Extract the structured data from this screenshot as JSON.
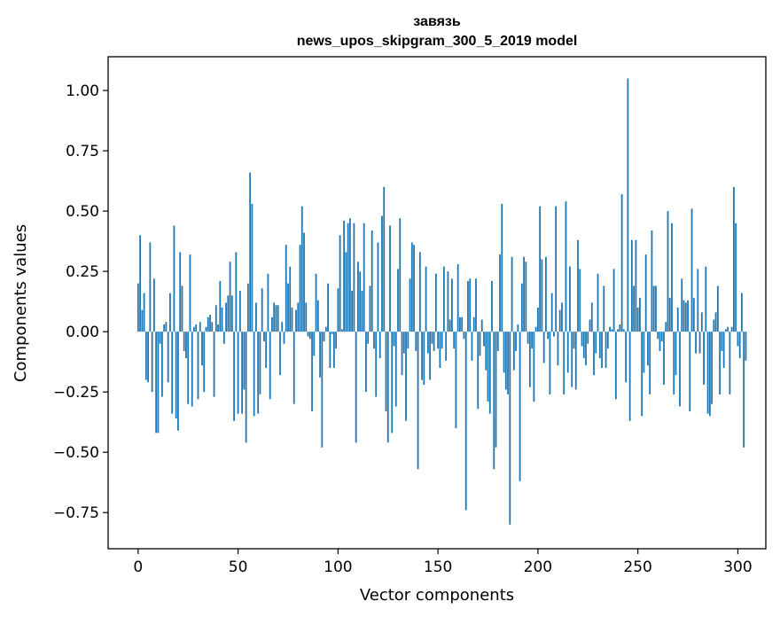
{
  "chart_data": {
    "type": "bar",
    "title": "завязь",
    "subtitle": "news_upos_skipgram_300_5_2019 model",
    "xlabel": "Vector components",
    "ylabel": "Components values",
    "xlim": [
      -15,
      314
    ],
    "ylim": [
      -0.9,
      1.14
    ],
    "xticks": [
      0,
      50,
      100,
      150,
      200,
      250,
      300
    ],
    "yticks": [
      -0.75,
      -0.5,
      -0.25,
      0.0,
      0.25,
      0.5,
      0.75,
      1.0
    ],
    "ytick_labels": [
      "−0.75",
      "−0.50",
      "−0.25",
      "0.00",
      "0.25",
      "0.50",
      "0.75",
      "1.00"
    ],
    "grid": false,
    "color": "#1f77b4",
    "values": [
      0.2,
      0.4,
      0.09,
      0.16,
      -0.2,
      -0.21,
      0.37,
      -0.25,
      0.22,
      -0.42,
      -0.42,
      -0.05,
      -0.27,
      0.03,
      0.04,
      -0.21,
      0.16,
      -0.34,
      0.44,
      -0.36,
      -0.41,
      0.33,
      0.19,
      -0.08,
      -0.11,
      -0.3,
      0.32,
      -0.31,
      0.02,
      0.03,
      -0.28,
      0.04,
      -0.14,
      -0.25,
      0.02,
      0.06,
      0.07,
      0.04,
      -0.27,
      0.11,
      0.03,
      0.21,
      0.1,
      -0.05,
      0.12,
      0.15,
      0.29,
      0.15,
      -0.37,
      0.33,
      -0.34,
      0.17,
      -0.34,
      -0.24,
      -0.46,
      0.2,
      0.66,
      0.53,
      -0.35,
      0.12,
      -0.34,
      -0.26,
      0.18,
      -0.04,
      -0.15,
      0.24,
      -0.28,
      0.06,
      0.12,
      0.11,
      0.11,
      -0.18,
      0.04,
      -0.05,
      0.36,
      0.2,
      0.27,
      0.1,
      -0.3,
      0.09,
      0.12,
      0.36,
      0.52,
      0.41,
      0.12,
      -0.02,
      -0.03,
      -0.33,
      -0.1,
      0.24,
      0.13,
      -0.19,
      -0.48,
      -0.04,
      0.02,
      0.2,
      -0.15,
      -0.01,
      -0.15,
      -0.07,
      0.18,
      0.4,
      0.01,
      0.46,
      0.33,
      0.45,
      0.47,
      0.17,
      0.45,
      -0.46,
      0.29,
      0.25,
      0.17,
      0.45,
      -0.25,
      -0.05,
      0.19,
      0.42,
      -0.07,
      -0.27,
      0.37,
      -0.11,
      0.48,
      0.6,
      -0.33,
      -0.46,
      0.44,
      -0.42,
      -0.06,
      -0.31,
      0.26,
      0.47,
      -0.18,
      -0.09,
      -0.37,
      -0.07,
      0.22,
      0.37,
      0.36,
      -0.08,
      -0.57,
      0.33,
      -0.2,
      -0.22,
      0.27,
      -0.09,
      -0.2,
      -0.05,
      -0.08,
      0.24,
      -0.07,
      -0.15,
      -0.07,
      0.27,
      -0.12,
      0.25,
      0.05,
      0.22,
      -0.07,
      -0.4,
      0.28,
      0.06,
      0.06,
      -0.03,
      -0.74,
      0.21,
      0.22,
      -0.12,
      0.06,
      0.22,
      -0.32,
      -0.1,
      0.05,
      -0.06,
      -0.16,
      -0.29,
      -0.34,
      0.21,
      -0.57,
      -0.48,
      -0.08,
      0.32,
      0.53,
      -0.17,
      -0.24,
      -0.26,
      -0.8,
      0.31,
      -0.16,
      -0.08,
      0.03,
      -0.62,
      0.2,
      0.31,
      0.29,
      -0.05,
      -0.23,
      -0.07,
      -0.29,
      0.02,
      0.1,
      0.52,
      0.3,
      -0.13,
      0.31,
      -0.03,
      -0.26,
      0.16,
      -0.02,
      0.52,
      -0.14,
      0.09,
      0.12,
      -0.26,
      0.54,
      -0.17,
      0.27,
      -0.23,
      -0.07,
      -0.24,
      0.38,
      0.26,
      -0.06,
      -0.11,
      -0.14,
      -0.05,
      0.05,
      0.12,
      -0.18,
      -0.09,
      0.24,
      -0.11,
      -0.15,
      0.19,
      -0.15,
      -0.07,
      0.02,
      0.01,
      0.26,
      -0.28,
      0.01,
      0.03,
      0.57,
      0.01,
      -0.21,
      1.05,
      -0.37,
      0.38,
      0.19,
      0.38,
      0.1,
      0.14,
      -0.35,
      -0.17,
      0.32,
      -0.14,
      -0.26,
      0.42,
      0.19,
      0.19,
      -0.03,
      -0.08,
      -0.04,
      -0.22,
      0.04,
      0.5,
      0.14,
      0.45,
      -0.26,
      -0.18,
      0.1,
      -0.31,
      0.22,
      0.13,
      0.12,
      0.13,
      -0.33,
      0.51,
      0.14,
      -0.09,
      0.26,
      -0.09,
      0.08,
      -0.22,
      0.27,
      -0.34,
      -0.35,
      -0.3,
      0.05,
      0.08,
      0.19,
      -0.26,
      -0.08,
      -0.15,
      0.01,
      0.02,
      -0.26,
      0.02,
      0.6,
      0.45,
      -0.06,
      -0.11,
      0.16,
      -0.48,
      -0.12
    ]
  }
}
